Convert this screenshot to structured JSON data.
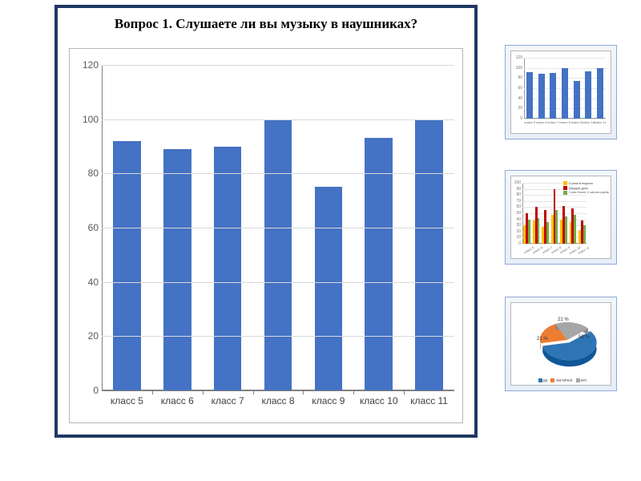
{
  "main_chart": {
    "title": "Вопрос 1. Слушаете ли вы музыку в наушниках?",
    "title_fontsize": 17,
    "type": "bar",
    "categories": [
      "класс 5",
      "класс 6",
      "класс 7",
      "класс 8",
      "класс 9",
      "класс 10",
      "класс 11"
    ],
    "values": [
      92,
      89,
      90,
      100,
      75,
      93,
      100
    ],
    "bar_color": "#4472c4",
    "ylim": [
      0,
      120
    ],
    "ytick_step": 20,
    "grid_color": "#d9d9d9",
    "axis_color": "#808080",
    "label_fontsize": 12,
    "bar_width_ratio": 0.55,
    "background_color": "#ffffff",
    "panel_border_color": "#1f3864",
    "panel_border_width": 4
  },
  "thumb1": {
    "type": "bar",
    "categories": [
      "класс 5",
      "класс 6",
      "класс 7",
      "класс 8",
      "класс 9",
      "класс 10",
      "класс 11"
    ],
    "values": [
      92,
      89,
      90,
      100,
      75,
      93,
      100
    ],
    "bar_color": "#4472c4",
    "ylim": [
      0,
      120
    ],
    "ytick_step": 20,
    "grid_color": "#e6e6e6",
    "frame_bg": "linear-gradient(#f2f6fb,#e6eef8)",
    "frame_border": "#8ea9db"
  },
  "thumb2": {
    "type": "grouped-bar",
    "categories": [
      "класс 5",
      "класс 6",
      "класс 7",
      "класс 8",
      "класс 9",
      "класс 10",
      "класс 11"
    ],
    "series": [
      {
        "label": "2 раза в неделю",
        "color": "#ffc000",
        "values": [
          30,
          38,
          28,
          48,
          40,
          35,
          22
        ]
      },
      {
        "label": "Каждый день",
        "color": "#c00000",
        "values": [
          50,
          60,
          55,
          90,
          62,
          58,
          38
        ]
      },
      {
        "label": "Соев более 4 часов в день",
        "color": "#70ad47",
        "values": [
          40,
          42,
          35,
          55,
          45,
          48,
          30
        ]
      }
    ],
    "ylim": [
      0,
      100
    ],
    "ytick_step": 10,
    "grid_color": "#e6e6e6"
  },
  "thumb3": {
    "type": "pie-3d",
    "slices": [
      {
        "label": "да",
        "value": 58,
        "color": "#2e75b6",
        "pct_label": "58 %"
      },
      {
        "label": "частично",
        "value": 21,
        "color": "#ed7d31",
        "pct_label": "21 %"
      },
      {
        "label": "нет",
        "value": 21,
        "color": "#a6a6a6",
        "pct_label": "21 %"
      }
    ],
    "legend_labels": [
      "да",
      "частично",
      "нет"
    ]
  }
}
